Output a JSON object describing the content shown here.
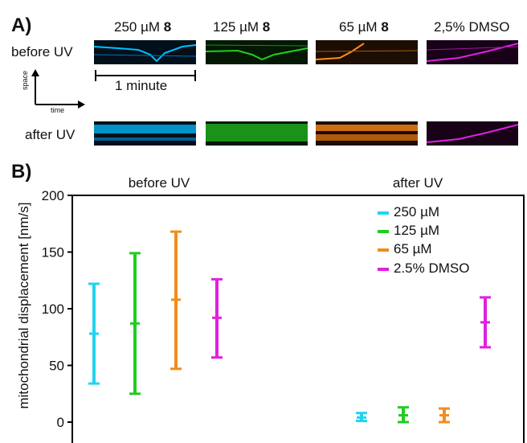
{
  "panel_a": {
    "label": "A)",
    "conditions": [
      {
        "prefix": "250 µM ",
        "bold": "8"
      },
      {
        "prefix": "125 µM ",
        "bold": "8"
      },
      {
        "prefix": "65 µM ",
        "bold": "8"
      },
      {
        "prefix": "2,5% DMSO",
        "bold": ""
      }
    ],
    "row_before": "before UV",
    "row_after": "after UV",
    "scale_bar": "1 minute",
    "axis_space": "space",
    "axis_time": "time",
    "colors": [
      "#00c0ff",
      "#22cc22",
      "#ff8c1a",
      "#e020e0"
    ]
  },
  "chart_data": {
    "type": "errorbar",
    "panel_label": "B)",
    "ylabel": "mitochondrial displacement [nm/s]",
    "ylim": [
      0,
      200
    ],
    "yticks": [
      0,
      50,
      100,
      150,
      200
    ],
    "group_labels": [
      "before UV",
      "after UV"
    ],
    "series": [
      {
        "name": "250 µM",
        "color": "#22d3f0",
        "points": [
          {
            "group": "before UV",
            "mean": 78,
            "low": 34,
            "high": 122
          },
          {
            "group": "after UV",
            "mean": 4,
            "low": 1,
            "high": 8
          }
        ]
      },
      {
        "name": "125 µM",
        "color": "#22cc22",
        "points": [
          {
            "group": "before UV",
            "mean": 87,
            "low": 25,
            "high": 149
          },
          {
            "group": "after UV",
            "mean": 6,
            "low": 0,
            "high": 13
          }
        ]
      },
      {
        "name": "65 µM",
        "color": "#f28c1c",
        "points": [
          {
            "group": "before UV",
            "mean": 108,
            "low": 47,
            "high": 168
          },
          {
            "group": "after UV",
            "mean": 6,
            "low": 0,
            "high": 12
          }
        ]
      },
      {
        "name": "2.5% DMSO",
        "color": "#e020e0",
        "points": [
          {
            "group": "before UV",
            "mean": 92,
            "low": 57,
            "high": 126
          },
          {
            "group": "after UV",
            "mean": 88,
            "low": 66,
            "high": 110
          }
        ]
      }
    ],
    "legend_position": "top-right"
  }
}
